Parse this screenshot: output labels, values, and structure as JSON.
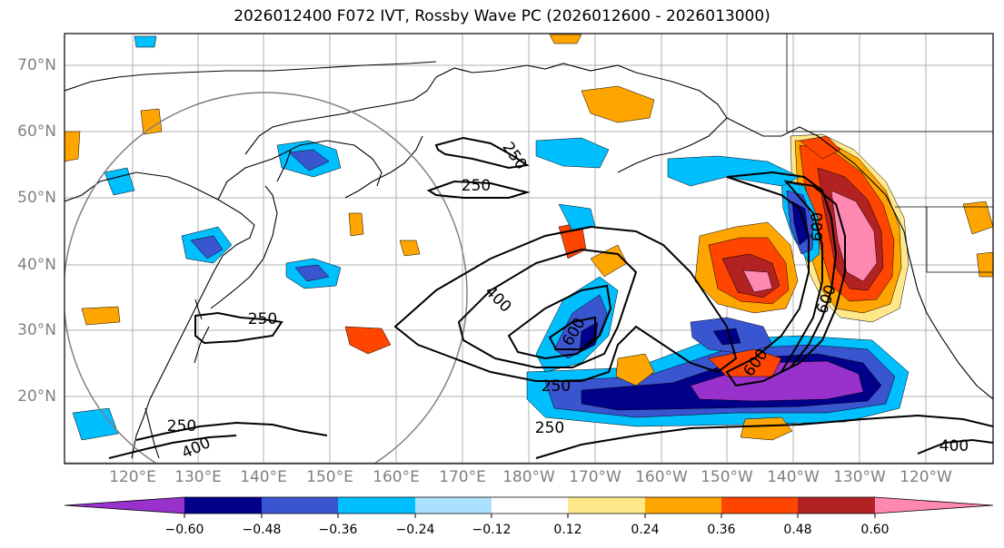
{
  "title": "2026012400 F072 IVT, Rossby Wave PC (2026012600 - 2026013000)",
  "map": {
    "lat_labels": [
      "70°N",
      "60°N",
      "50°N",
      "40°N",
      "30°N",
      "20°N"
    ],
    "lon_labels": [
      "120°E",
      "130°E",
      "140°E",
      "150°E",
      "160°E",
      "170°E",
      "180°W",
      "170°W",
      "160°W",
      "150°W",
      "140°W",
      "130°W",
      "120°W"
    ],
    "contour_labels": [
      "250",
      "250",
      "250",
      "250",
      "250",
      "250",
      "400",
      "400",
      "400",
      "600",
      "600",
      "600",
      "600"
    ],
    "colors": {
      "coastline": "#000000",
      "grid": "#b0b0b0",
      "circle": "#808080",
      "contour": "#000000"
    }
  },
  "colorbar": {
    "colors": [
      "#9932CC",
      "#00008B",
      "#3A55D0",
      "#00BFFF",
      "#ADDFFF",
      "#FFFFFF",
      "#FFE88A",
      "#FFA500",
      "#FF4500",
      "#B22222",
      "#FF88B0"
    ],
    "tick_labels": [
      "−0.60",
      "−0.48",
      "−0.36",
      "−0.24",
      "−0.12",
      "0.12",
      "0.24",
      "0.36",
      "0.48",
      "0.60"
    ]
  }
}
